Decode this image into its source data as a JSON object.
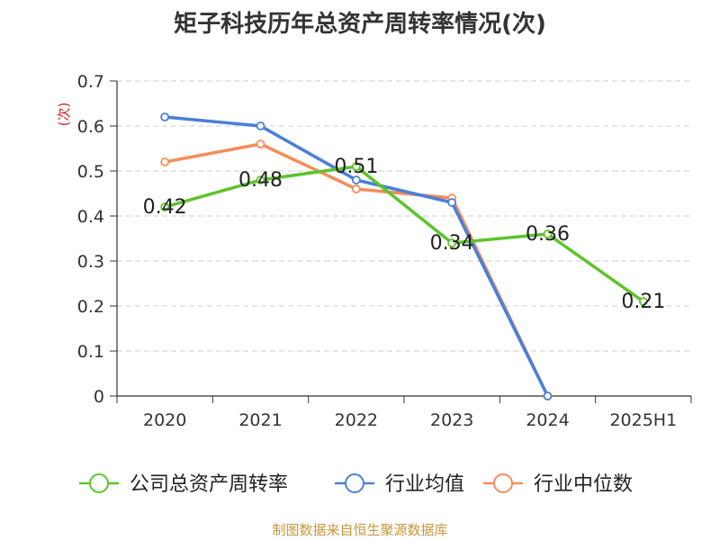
{
  "title": "矩子科技历年总资产周转率情况(次)",
  "source": "制图数据来自恒生聚源数据库",
  "chart_data": {
    "type": "line",
    "title": "矩子科技历年总资产周转率情况(次)",
    "ylabel": "(次)",
    "xlabel": "",
    "categories": [
      "2020",
      "2021",
      "2022",
      "2023",
      "2024",
      "2025H1"
    ],
    "ylim": [
      0,
      0.7
    ],
    "yticks": [
      "0",
      "0.1",
      "0.2",
      "0.3",
      "0.4",
      "0.5",
      "0.6",
      "0.7"
    ],
    "grid": true,
    "legend_position": "bottom",
    "series": [
      {
        "name": "公司总资产周转率",
        "color": "#5cc42a",
        "values": [
          0.42,
          0.48,
          0.51,
          0.34,
          0.36,
          0.21
        ],
        "labels": [
          "0.42",
          "0.48",
          "0.51",
          "0.34",
          "0.36",
          "0.21"
        ]
      },
      {
        "name": "行业均值",
        "color": "#4a7fd8",
        "values": [
          0.62,
          0.6,
          0.48,
          0.43,
          0,
          null
        ]
      },
      {
        "name": "行业中位数",
        "color": "#f58d5b",
        "values": [
          0.52,
          0.56,
          0.46,
          0.44,
          0,
          null
        ]
      }
    ]
  }
}
